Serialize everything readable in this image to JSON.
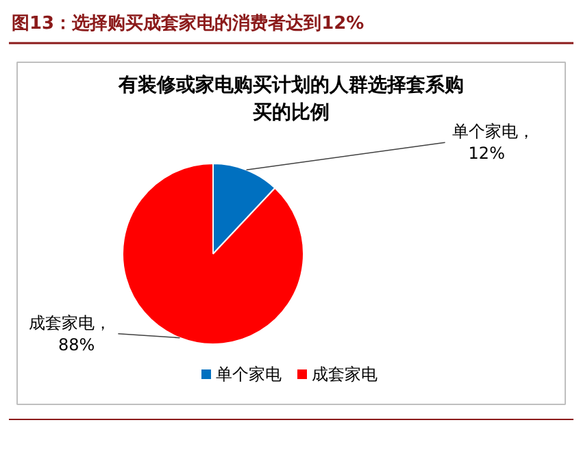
{
  "chart_data": {
    "type": "pie",
    "title": "图13：选择购买成套家电的消费者达到12%",
    "subtitle": "有装修或家电购买计划的人群选择套系购买的比例",
    "categories": [
      "单个家电",
      "成套家电"
    ],
    "values": [
      12,
      88
    ],
    "colors": [
      "#0070c0",
      "#ff0000"
    ],
    "value_labels": [
      "单个家电，12%",
      "成套家电，88%"
    ],
    "legend": "bottom"
  }
}
